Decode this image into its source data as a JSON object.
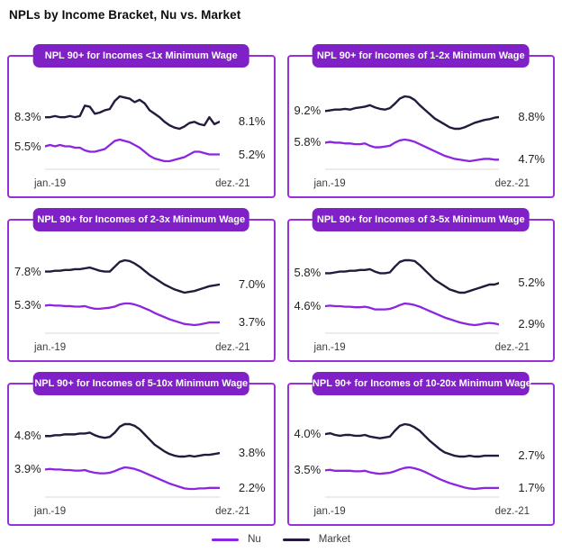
{
  "page": {
    "title": "NPLs by Income Bracket, Nu vs. Market"
  },
  "colors": {
    "panel_border": "#9a2fd6",
    "header_bg": "#8021c7",
    "nu_line": "#8c25e0",
    "market_line": "#251a3d",
    "axis_line": "#ececec"
  },
  "legend": {
    "items": [
      {
        "label": "Nu",
        "color": "#8c25e0"
      },
      {
        "label": "Market",
        "color": "#251a3d"
      }
    ]
  },
  "chart_data": [
    {
      "type": "line",
      "title": "NPL 90+ for Incomes <1x Minimum Wage",
      "x_start": "jan.-19",
      "x_end": "dez.-21",
      "x_points": 36,
      "grid": false,
      "legend_position": "bottom-shared",
      "series": [
        {
          "name": "Market",
          "color": "#251a3d",
          "start_label": "8.3%",
          "end_label": "8.1%",
          "band": [
            16,
            52
          ],
          "values": [
            8.3,
            8.3,
            8.35,
            8.3,
            8.3,
            8.35,
            8.3,
            8.35,
            8.8,
            8.75,
            8.45,
            8.5,
            8.6,
            8.65,
            9.0,
            9.2,
            9.15,
            9.1,
            8.95,
            9.05,
            8.9,
            8.6,
            8.45,
            8.3,
            8.1,
            7.95,
            7.85,
            7.8,
            7.9,
            8.05,
            8.1,
            8.0,
            7.95,
            8.3,
            8.0,
            8.1
          ]
        },
        {
          "name": "Nu",
          "color": "#8c25e0",
          "start_label": "5.5%",
          "end_label": "5.2%",
          "band": [
            64,
            88
          ],
          "values": [
            5.5,
            5.55,
            5.5,
            5.55,
            5.5,
            5.5,
            5.45,
            5.45,
            5.35,
            5.3,
            5.3,
            5.35,
            5.4,
            5.55,
            5.7,
            5.75,
            5.7,
            5.65,
            5.55,
            5.45,
            5.3,
            5.15,
            5.05,
            5.0,
            4.95,
            4.95,
            5.0,
            5.05,
            5.1,
            5.2,
            5.3,
            5.3,
            5.25,
            5.2,
            5.2,
            5.2
          ]
        }
      ]
    },
    {
      "type": "line",
      "title": "NPL 90+ for Incomes of 1-2x Minimum Wage",
      "x_start": "jan.-19",
      "x_end": "dez.-21",
      "x_points": 36,
      "grid": false,
      "legend_position": "bottom-shared",
      "series": [
        {
          "name": "Market",
          "color": "#251a3d",
          "start_label": "9.2%",
          "end_label": "8.8%",
          "band": [
            16,
            52
          ],
          "values": [
            9.2,
            9.25,
            9.3,
            9.3,
            9.35,
            9.3,
            9.4,
            9.45,
            9.5,
            9.6,
            9.45,
            9.35,
            9.3,
            9.4,
            9.7,
            10.05,
            10.2,
            10.15,
            9.95,
            9.6,
            9.3,
            9.0,
            8.7,
            8.5,
            8.3,
            8.1,
            8.0,
            8.0,
            8.1,
            8.25,
            8.4,
            8.5,
            8.6,
            8.65,
            8.75,
            8.8
          ]
        },
        {
          "name": "Nu",
          "color": "#8c25e0",
          "start_label": "5.8%",
          "end_label": "4.7%",
          "band": [
            64,
            88
          ],
          "values": [
            5.8,
            5.85,
            5.8,
            5.8,
            5.75,
            5.75,
            5.7,
            5.7,
            5.75,
            5.6,
            5.5,
            5.5,
            5.55,
            5.6,
            5.8,
            5.95,
            6.0,
            5.95,
            5.85,
            5.7,
            5.55,
            5.4,
            5.25,
            5.1,
            4.95,
            4.85,
            4.75,
            4.7,
            4.65,
            4.6,
            4.65,
            4.7,
            4.75,
            4.75,
            4.7,
            4.7
          ]
        }
      ]
    },
    {
      "type": "line",
      "title": "NPL 90+ for Incomes of 2-3x Minimum Wage",
      "x_start": "jan.-19",
      "x_end": "dez.-21",
      "x_points": 36,
      "grid": false,
      "legend_position": "bottom-shared",
      "series": [
        {
          "name": "Market",
          "color": "#251a3d",
          "start_label": "7.8%",
          "end_label": "7.0%",
          "band": [
            16,
            52
          ],
          "values": [
            7.8,
            7.8,
            7.85,
            7.85,
            7.9,
            7.9,
            7.95,
            7.95,
            8.0,
            8.05,
            7.95,
            7.85,
            7.8,
            7.8,
            8.1,
            8.4,
            8.5,
            8.45,
            8.3,
            8.1,
            7.85,
            7.6,
            7.4,
            7.2,
            7.0,
            6.85,
            6.7,
            6.6,
            6.5,
            6.55,
            6.6,
            6.7,
            6.8,
            6.9,
            6.95,
            7.0
          ]
        },
        {
          "name": "Nu",
          "color": "#8c25e0",
          "start_label": "5.3%",
          "end_label": "3.7%",
          "band": [
            64,
            88
          ],
          "values": [
            5.3,
            5.35,
            5.3,
            5.3,
            5.25,
            5.25,
            5.2,
            5.2,
            5.25,
            5.1,
            5.0,
            5.0,
            5.05,
            5.1,
            5.2,
            5.4,
            5.5,
            5.5,
            5.4,
            5.25,
            5.05,
            4.85,
            4.6,
            4.4,
            4.2,
            4.0,
            3.85,
            3.7,
            3.55,
            3.5,
            3.45,
            3.5,
            3.6,
            3.7,
            3.7,
            3.7
          ]
        }
      ]
    },
    {
      "type": "line",
      "title": "NPL 90+ for Incomes of 3-5x Minimum Wage",
      "x_start": "jan.-19",
      "x_end": "dez.-21",
      "x_points": 36,
      "grid": false,
      "legend_position": "bottom-shared",
      "series": [
        {
          "name": "Market",
          "color": "#251a3d",
          "start_label": "5.8%",
          "end_label": "5.2%",
          "band": [
            16,
            52
          ],
          "values": [
            5.8,
            5.8,
            5.85,
            5.9,
            5.9,
            5.95,
            5.95,
            6.0,
            6.0,
            6.05,
            5.9,
            5.8,
            5.8,
            5.85,
            6.2,
            6.5,
            6.6,
            6.6,
            6.55,
            6.3,
            6.0,
            5.7,
            5.4,
            5.2,
            5.0,
            4.8,
            4.7,
            4.6,
            4.6,
            4.7,
            4.8,
            4.9,
            5.0,
            5.1,
            5.1,
            5.2
          ]
        },
        {
          "name": "Nu",
          "color": "#8c25e0",
          "start_label": "4.6%",
          "end_label": "2.9%",
          "band": [
            64,
            88
          ],
          "values": [
            4.6,
            4.65,
            4.6,
            4.6,
            4.55,
            4.55,
            4.5,
            4.5,
            4.55,
            4.45,
            4.3,
            4.3,
            4.3,
            4.35,
            4.5,
            4.7,
            4.85,
            4.8,
            4.7,
            4.55,
            4.35,
            4.15,
            3.95,
            3.75,
            3.55,
            3.4,
            3.25,
            3.1,
            3.0,
            2.9,
            2.85,
            2.9,
            3.0,
            3.05,
            3.0,
            2.9
          ]
        }
      ]
    },
    {
      "type": "line",
      "title": "NPL 90+ for Incomes of 5-10x Minimum Wage",
      "x_start": "jan.-19",
      "x_end": "dez.-21",
      "x_points": 36,
      "grid": false,
      "legend_position": "bottom-shared",
      "series": [
        {
          "name": "Market",
          "color": "#251a3d",
          "start_label": "4.8%",
          "end_label": "3.8%",
          "band": [
            16,
            52
          ],
          "values": [
            4.8,
            4.8,
            4.85,
            4.85,
            4.9,
            4.9,
            4.9,
            4.95,
            4.95,
            5.0,
            4.85,
            4.75,
            4.7,
            4.75,
            5.0,
            5.35,
            5.5,
            5.5,
            5.4,
            5.2,
            4.9,
            4.6,
            4.3,
            4.1,
            3.9,
            3.75,
            3.65,
            3.6,
            3.6,
            3.65,
            3.6,
            3.65,
            3.7,
            3.7,
            3.75,
            3.8
          ]
        },
        {
          "name": "Nu",
          "color": "#8c25e0",
          "start_label": "3.9%",
          "end_label": "2.2%",
          "band": [
            64,
            88
          ],
          "values": [
            3.9,
            3.95,
            3.9,
            3.9,
            3.85,
            3.85,
            3.8,
            3.8,
            3.85,
            3.7,
            3.6,
            3.55,
            3.55,
            3.6,
            3.75,
            3.95,
            4.1,
            4.05,
            3.95,
            3.8,
            3.6,
            3.4,
            3.2,
            3.0,
            2.8,
            2.6,
            2.45,
            2.3,
            2.15,
            2.1,
            2.1,
            2.15,
            2.15,
            2.2,
            2.2,
            2.2
          ]
        }
      ]
    },
    {
      "type": "line",
      "title": "NPL 90+ for Incomes of 10-20x Minimum Wage",
      "x_start": "jan.-19",
      "x_end": "dez.-21",
      "x_points": 36,
      "grid": false,
      "legend_position": "bottom-shared",
      "series": [
        {
          "name": "Market",
          "color": "#251a3d",
          "start_label": "4.0%",
          "end_label": "2.7%",
          "band": [
            16,
            52
          ],
          "values": [
            4.0,
            4.05,
            3.95,
            3.9,
            3.95,
            3.95,
            3.9,
            3.9,
            3.95,
            3.85,
            3.8,
            3.75,
            3.8,
            3.85,
            4.2,
            4.5,
            4.6,
            4.55,
            4.4,
            4.2,
            3.9,
            3.6,
            3.35,
            3.1,
            2.9,
            2.8,
            2.7,
            2.65,
            2.65,
            2.7,
            2.65,
            2.65,
            2.7,
            2.7,
            2.7,
            2.7
          ]
        },
        {
          "name": "Nu",
          "color": "#8c25e0",
          "start_label": "3.5%",
          "end_label": "1.7%",
          "band": [
            64,
            88
          ],
          "values": [
            3.5,
            3.55,
            3.45,
            3.45,
            3.45,
            3.45,
            3.4,
            3.4,
            3.45,
            3.3,
            3.2,
            3.15,
            3.2,
            3.25,
            3.4,
            3.6,
            3.75,
            3.8,
            3.7,
            3.55,
            3.35,
            3.1,
            2.85,
            2.6,
            2.4,
            2.2,
            2.05,
            1.9,
            1.75,
            1.65,
            1.6,
            1.65,
            1.7,
            1.7,
            1.7,
            1.7
          ]
        }
      ]
    }
  ]
}
